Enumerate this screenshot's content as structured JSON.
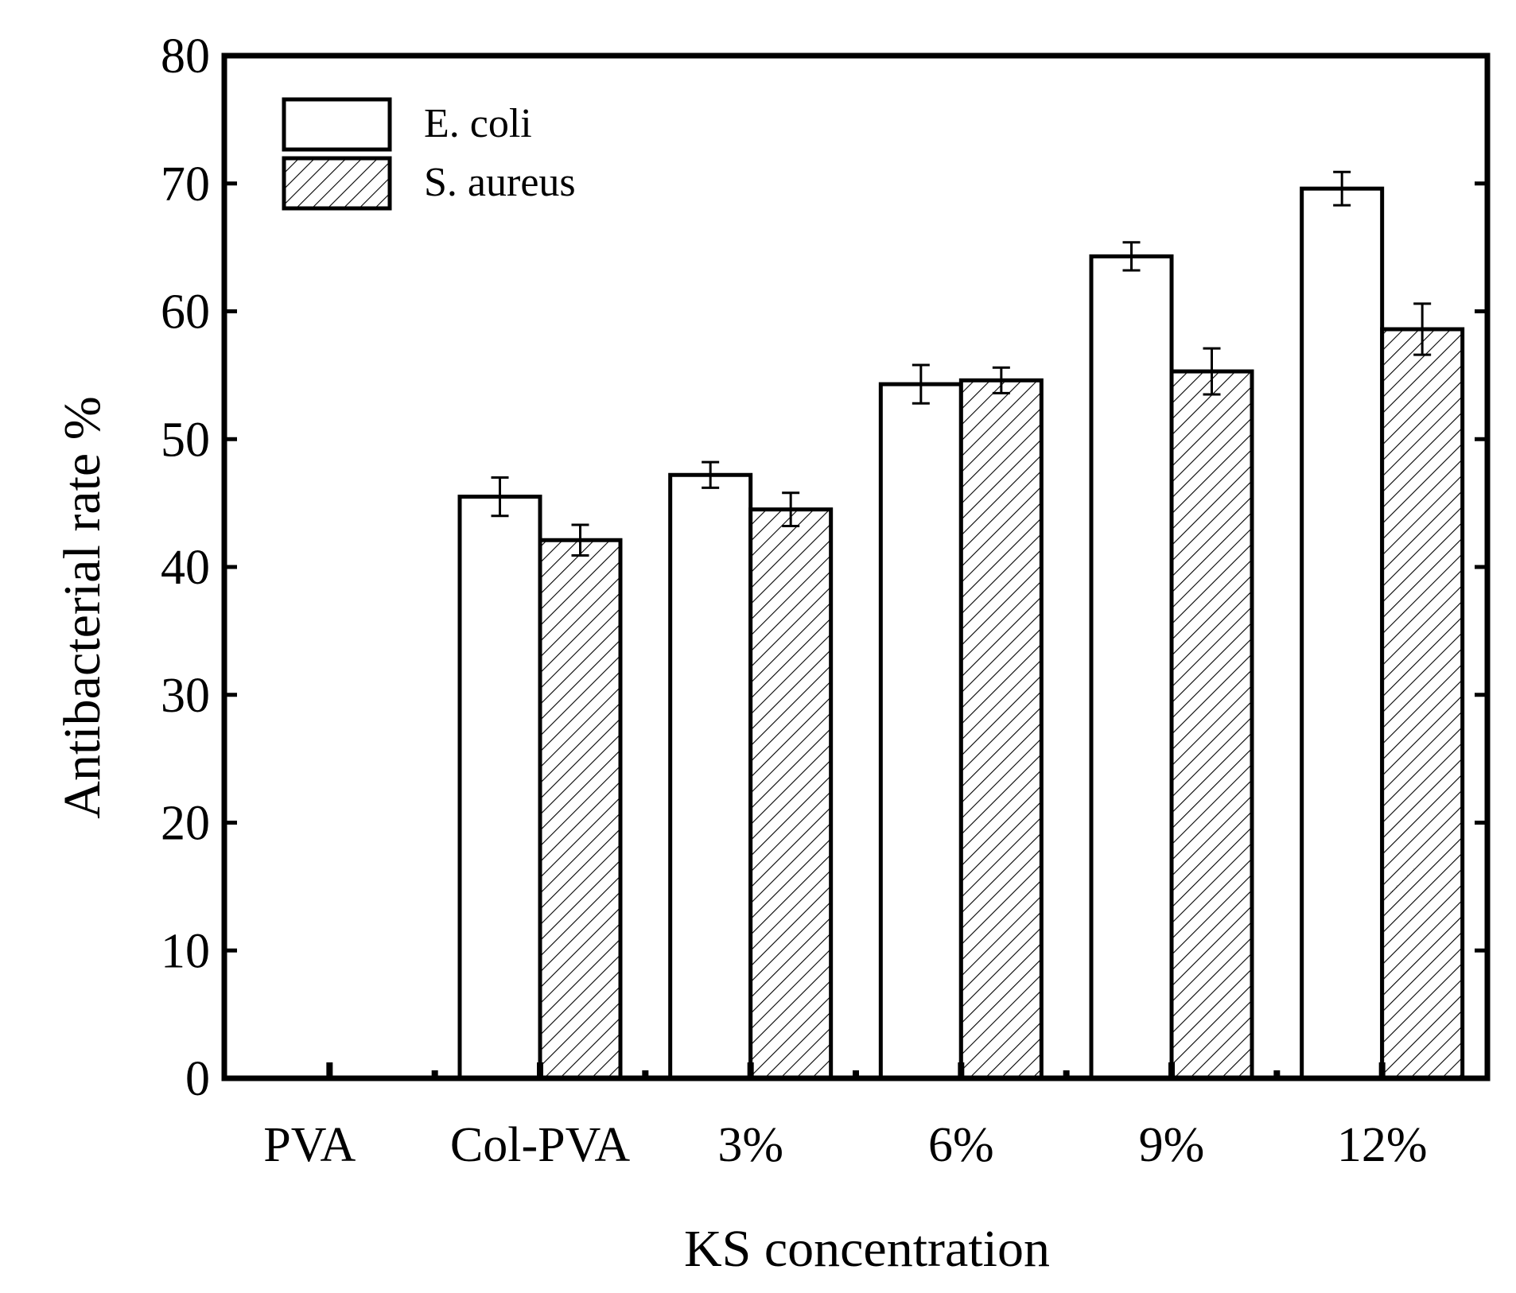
{
  "chart_data": {
    "type": "bar",
    "title": "",
    "xlabel": "KS concentration",
    "ylabel": "Antibacterial rate %",
    "ylim": [
      0,
      80
    ],
    "yticks": [
      0,
      10,
      20,
      30,
      40,
      50,
      60,
      70,
      80
    ],
    "ytick_labels": [
      "0",
      "10",
      "20",
      "30",
      "40",
      "50",
      "60",
      "70",
      "80"
    ],
    "categories": [
      "PVA",
      "Col-PVA",
      "3%",
      "6%",
      "9%",
      "12%"
    ],
    "series": [
      {
        "name": "E. coli",
        "pattern": "open",
        "values": [
          0,
          45.5,
          47.2,
          54.3,
          64.3,
          69.6
        ],
        "errors": [
          0,
          1.5,
          1.0,
          1.5,
          1.1,
          1.3
        ]
      },
      {
        "name": "S. aureus",
        "pattern": "hatched",
        "values": [
          0,
          42.1,
          44.5,
          54.6,
          55.3,
          58.6
        ],
        "errors": [
          0,
          1.2,
          1.3,
          1.0,
          1.8,
          2.0
        ]
      }
    ],
    "legend": "top-left",
    "grid": false,
    "colors": {
      "line": "#000000",
      "fill": "#ffffff"
    }
  }
}
